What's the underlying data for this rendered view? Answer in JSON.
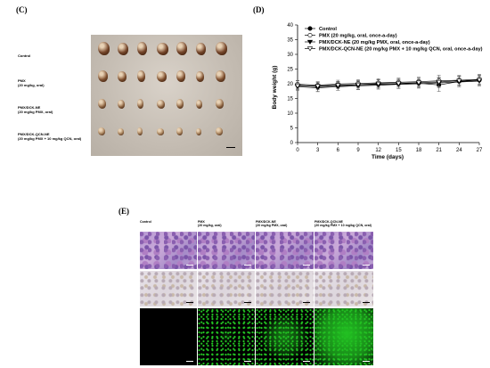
{
  "panel_c": {
    "letter": "(C)",
    "row_labels": [
      "Control",
      "PMX\n(20 mg/kg, oral)",
      "PMX/DCK-NE\n(20 mg/kg PMX, oral)",
      "PMX/DCK-QCN-NE\n(20 mg/kg PMX + 10 mg/kg QCN, oral)"
    ],
    "tumor_colors": [
      "#7a4a2e",
      "#8a5a38",
      "#a37a55",
      "#c09a70"
    ]
  },
  "panel_d": {
    "letter": "(D)",
    "chart_data": {
      "type": "line",
      "title": "",
      "xlabel": "Time (days)",
      "ylabel": "Body weight (g)",
      "x": [
        0,
        3,
        6,
        9,
        12,
        15,
        18,
        21,
        24,
        27
      ],
      "xticks": [
        0,
        3,
        6,
        9,
        12,
        15,
        18,
        21,
        24,
        27
      ],
      "yticks": [
        0,
        5,
        10,
        15,
        20,
        25,
        30,
        35,
        40
      ],
      "xlim": [
        0,
        27
      ],
      "ylim": [
        0,
        40
      ],
      "grid": false,
      "legend_position": "top-left",
      "series": [
        {
          "name": "Control",
          "marker": "filled-circle",
          "values": [
            19.5,
            19.0,
            19.3,
            19.6,
            19.8,
            20.0,
            20.2,
            19.6,
            20.8,
            21.2
          ],
          "err": [
            1.5,
            1.6,
            1.5,
            1.5,
            1.6,
            1.6,
            1.7,
            2.2,
            1.8,
            1.8
          ]
        },
        {
          "name": "PMX (20 mg/kg, oral, once-a-day)",
          "marker": "open-circle",
          "values": [
            19.8,
            19.5,
            19.9,
            20.1,
            20.3,
            20.5,
            20.7,
            21.0,
            21.2,
            21.5
          ],
          "err": [
            1.3,
            1.2,
            1.3,
            1.3,
            1.4,
            1.4,
            1.5,
            1.9,
            1.6,
            1.7
          ]
        },
        {
          "name": "PMX/DCK-NE (20 mg/kg PMX, oral, once-a-day)",
          "marker": "filled-triangle",
          "values": [
            19.0,
            18.6,
            19.0,
            19.3,
            19.5,
            19.8,
            20.0,
            20.3,
            20.6,
            20.9
          ],
          "err": [
            1.2,
            1.3,
            1.2,
            1.3,
            1.3,
            1.4,
            1.4,
            1.7,
            1.5,
            1.6
          ]
        },
        {
          "name": "PMX/DCK-QCN-NE (20 mg/kg PMX + 10 mg/kg QCN, oral, once-a-day)",
          "marker": "open-triangle",
          "values": [
            19.3,
            19.2,
            19.5,
            19.7,
            20.0,
            20.1,
            20.4,
            20.6,
            21.0,
            21.3
          ],
          "err": [
            1.1,
            1.2,
            1.2,
            1.2,
            1.3,
            1.3,
            1.4,
            1.6,
            1.5,
            1.6
          ]
        }
      ]
    }
  },
  "panel_e": {
    "letter": "(E)",
    "column_labels": [
      "Control",
      "PMX\n(20 mg/kg, oral)",
      "PMX/DCK-NE\n(20 mg/kg PMX, oral)",
      "PMX/DCK-QCN-NE\n(20 mg/kg PMX + 10 mg/kg QCN, oral)"
    ],
    "fluorescence_levels": [
      0.0,
      0.12,
      0.5,
      0.9
    ],
    "fluorescence_color": "#22c022"
  }
}
